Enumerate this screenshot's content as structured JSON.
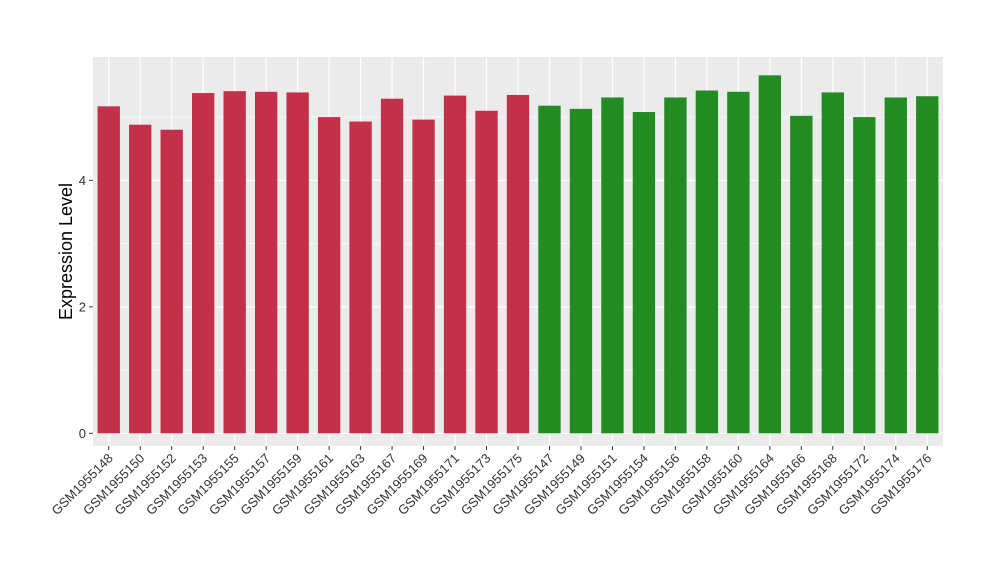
{
  "chart_data": {
    "type": "bar",
    "title": "",
    "xlabel": "",
    "ylabel": "Expression Level",
    "ylim": [
      -0.2,
      5.95
    ],
    "yticks": [
      0,
      2,
      4
    ],
    "grid": true,
    "legend": "none",
    "categories": [
      "GSM1955148",
      "GSM1955150",
      "GSM1955152",
      "GSM1955153",
      "GSM1955155",
      "GSM1955157",
      "GSM1955159",
      "GSM1955161",
      "GSM1955163",
      "GSM1955167",
      "GSM1955169",
      "GSM1955171",
      "GSM1955173",
      "GSM1955175",
      "GSM1955147",
      "GSM1955149",
      "GSM1955151",
      "GSM1955154",
      "GSM1955156",
      "GSM1955158",
      "GSM1955160",
      "GSM1955164",
      "GSM1955166",
      "GSM1955168",
      "GSM1955172",
      "GSM1955174",
      "GSM1955176"
    ],
    "values": [
      5.17,
      4.88,
      4.8,
      5.38,
      5.41,
      5.4,
      5.39,
      5.0,
      4.93,
      5.29,
      4.96,
      5.34,
      5.1,
      5.35,
      5.18,
      5.13,
      5.31,
      5.08,
      5.31,
      5.42,
      5.4,
      5.66,
      5.02,
      5.39,
      5.0,
      5.31,
      5.33
    ],
    "bar_colors": [
      "#c3304a",
      "#c3304a",
      "#c3304a",
      "#c3304a",
      "#c3304a",
      "#c3304a",
      "#c3304a",
      "#c3304a",
      "#c3304a",
      "#c3304a",
      "#c3304a",
      "#c3304a",
      "#c3304a",
      "#c3304a",
      "#228b22",
      "#228b22",
      "#228b22",
      "#228b22",
      "#228b22",
      "#228b22",
      "#228b22",
      "#228b22",
      "#228b22",
      "#228b22",
      "#228b22",
      "#228b22",
      "#228b22"
    ],
    "panel_background": "#ebebeb",
    "grid_color": "#ffffff"
  }
}
